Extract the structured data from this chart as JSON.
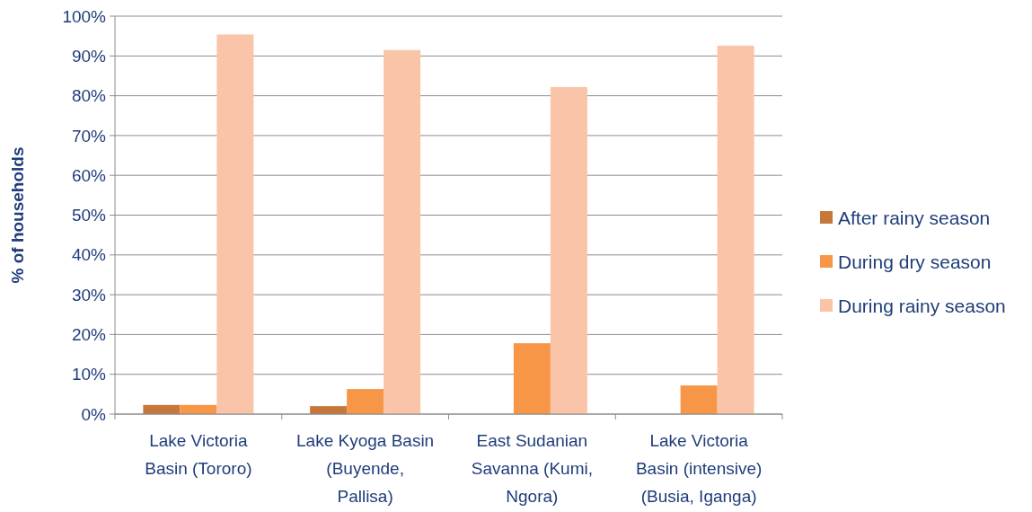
{
  "chart_data": {
    "type": "bar",
    "ylabel": "% of households",
    "categories": [
      "Lake Victoria Basin (Tororo)",
      "Lake Kyoga Basin (Buyende, Pallisa)",
      "East Sudanian Savanna (Kumi, Ngora)",
      "Lake Victoria Basin (intensive) (Busia, Iganga)"
    ],
    "series": [
      {
        "name": "After rainy season",
        "color": "#c8773a",
        "values": [
          2.3,
          2.0,
          0,
          0
        ]
      },
      {
        "name": "During dry season",
        "color": "#f79646",
        "values": [
          2.3,
          6.3,
          17.8,
          7.2
        ]
      },
      {
        "name": "During rainy season",
        "color": "#fac4a8",
        "values": [
          95.4,
          91.5,
          82.2,
          92.6
        ]
      }
    ],
    "ylim": [
      0,
      100
    ],
    "yticks": [
      {
        "value": 0,
        "label": "0%"
      },
      {
        "value": 10,
        "label": "10%"
      },
      {
        "value": 20,
        "label": "20%"
      },
      {
        "value": 30,
        "label": "30%"
      },
      {
        "value": 40,
        "label": "40%"
      },
      {
        "value": 50,
        "label": "50%"
      },
      {
        "value": 60,
        "label": "60%"
      },
      {
        "value": 70,
        "label": "70%"
      },
      {
        "value": 80,
        "label": "80%"
      },
      {
        "value": 90,
        "label": "90%"
      },
      {
        "value": 100,
        "label": "100%"
      }
    ],
    "grid": "y",
    "legend": "right"
  }
}
